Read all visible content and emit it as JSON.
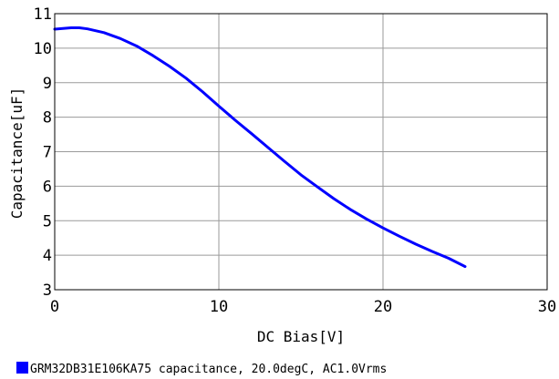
{
  "chart_data": {
    "type": "line",
    "xlabel": "DC Bias[V]",
    "ylabel": "Capacitance[uF]",
    "xlim": [
      0,
      30
    ],
    "ylim": [
      3,
      11
    ],
    "x_ticks": [
      "0",
      "10",
      "20",
      "30"
    ],
    "y_ticks": [
      "3",
      "4",
      "5",
      "6",
      "7",
      "8",
      "9",
      "10",
      "11"
    ],
    "grid": true,
    "legend_position": "bottom-left",
    "series": [
      {
        "name": "GRM32DB31E106KA75 capacitance, 20.0degC, AC1.0Vrms",
        "color": "#0000ff",
        "points": [
          [
            0,
            10.55
          ],
          [
            0.5,
            10.57
          ],
          [
            1,
            10.59
          ],
          [
            1.5,
            10.59
          ],
          [
            2,
            10.56
          ],
          [
            3,
            10.45
          ],
          [
            4,
            10.28
          ],
          [
            5,
            10.06
          ],
          [
            6,
            9.78
          ],
          [
            7,
            9.47
          ],
          [
            8,
            9.13
          ],
          [
            9,
            8.74
          ],
          [
            10,
            8.32
          ],
          [
            11,
            7.91
          ],
          [
            12,
            7.52
          ],
          [
            13,
            7.12
          ],
          [
            14,
            6.72
          ],
          [
            15,
            6.33
          ],
          [
            16,
            5.98
          ],
          [
            17,
            5.64
          ],
          [
            18,
            5.33
          ],
          [
            19,
            5.05
          ],
          [
            20,
            4.79
          ],
          [
            21,
            4.55
          ],
          [
            22,
            4.32
          ],
          [
            23,
            4.11
          ],
          [
            24,
            3.91
          ],
          [
            25,
            3.67
          ]
        ]
      }
    ]
  }
}
